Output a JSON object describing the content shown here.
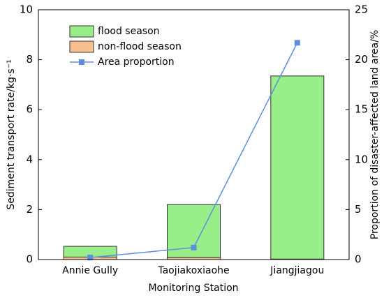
{
  "chart_data": {
    "type": "bar",
    "x_label": "Monitoring Station",
    "y_label": "Sediment transport rate/kg·s⁻¹",
    "y2_label": "Proportion of disaster-affected land area/%",
    "categories": [
      "Annie Gully",
      "Taojiakoxiaohe",
      "Jiangjiagou"
    ],
    "series": [
      {
        "name": "flood season",
        "type": "bar",
        "color": "#98ee88",
        "values": [
          0.43,
          2.12,
          7.33
        ]
      },
      {
        "name": "non-flood season",
        "type": "bar",
        "color": "#f8c090",
        "values": [
          0.1,
          0.08,
          0.02
        ]
      },
      {
        "name": "Area proportion",
        "type": "line",
        "axis": "y2",
        "color": "#5b8fe0",
        "values": [
          0.2,
          1.2,
          21.7
        ]
      }
    ],
    "ylim": [
      0,
      10
    ],
    "yticks": [
      0,
      2,
      4,
      6,
      8,
      10
    ],
    "y2lim": [
      0,
      25
    ],
    "y2ticks": [
      0,
      5,
      10,
      15,
      20,
      25
    ],
    "legend": "upper-left",
    "grid": false
  }
}
